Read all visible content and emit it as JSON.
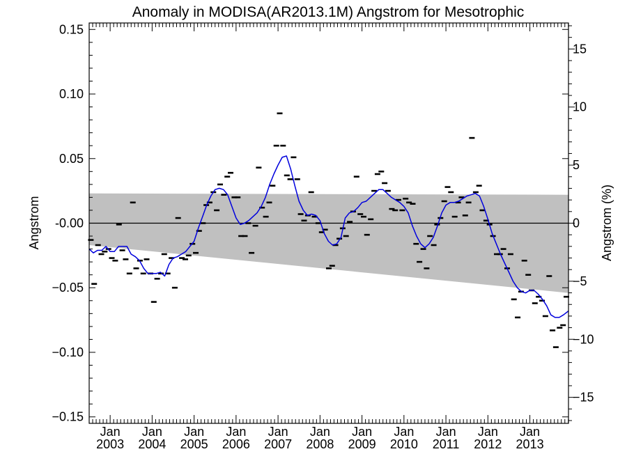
{
  "chart_data": {
    "type": "line",
    "title": "Anomaly in MODISA(AR2013.1M) Angstrom for Mesotrophic",
    "ylabel": "Angstrom",
    "ylabel_right": "Angstrom (%)",
    "xlabel": "",
    "ylim": [
      -0.155,
      0.155
    ],
    "ylim_right": [
      -17.24,
      17.24
    ],
    "x_range": [
      2002.5,
      2013.92
    ],
    "y_ticks": [
      -0.15,
      -0.1,
      -0.05,
      0.0,
      0.05,
      0.1,
      0.15
    ],
    "y_tick_labels": [
      "−0.15",
      "−0.10",
      "−0.05",
      "-0.00",
      "0.05",
      "0.10",
      "0.15"
    ],
    "y_right_ticks": [
      -15,
      -10,
      -5,
      0,
      5,
      10,
      15
    ],
    "y_right_tick_labels": [
      "−15",
      "−10",
      "−5",
      "0",
      "5",
      "10",
      "15"
    ],
    "x_ticks": [
      {
        "x": 2003.0,
        "month": "Jan",
        "year": "2003"
      },
      {
        "x": 2004.0,
        "month": "Jan",
        "year": "2004"
      },
      {
        "x": 2005.0,
        "month": "Jan",
        "year": "2005"
      },
      {
        "x": 2006.0,
        "month": "Jan",
        "year": "2006"
      },
      {
        "x": 2007.0,
        "month": "Jan",
        "year": "2007"
      },
      {
        "x": 2008.0,
        "month": "Jan",
        "year": "2008"
      },
      {
        "x": 2009.0,
        "month": "Jan",
        "year": "2009"
      },
      {
        "x": 2010.0,
        "month": "Jan",
        "year": "2010"
      },
      {
        "x": 2011.0,
        "month": "Jan",
        "year": "2011"
      },
      {
        "x": 2012.0,
        "month": "Jan",
        "year": "2012"
      },
      {
        "x": 2013.0,
        "month": "Jan",
        "year": "2013"
      }
    ],
    "zero_line": 0.0,
    "shaded_band": {
      "color": "#c0c0c0",
      "upper": [
        [
          2002.5,
          0.023
        ],
        [
          2013.92,
          0.022
        ]
      ],
      "lower": [
        [
          2002.5,
          -0.017
        ],
        [
          2013.92,
          -0.054
        ]
      ]
    },
    "series": [
      {
        "type": "markers",
        "color": "#000000",
        "points": [
          [
            2002.54,
            -0.013
          ],
          [
            2002.62,
            -0.047
          ],
          [
            2002.71,
            -0.017
          ],
          [
            2002.79,
            -0.024
          ],
          [
            2002.87,
            -0.022
          ],
          [
            2002.96,
            -0.02
          ],
          [
            2003.04,
            -0.027
          ],
          [
            2003.12,
            -0.029
          ],
          [
            2003.21,
            -0.001
          ],
          [
            2003.29,
            -0.021
          ],
          [
            2003.37,
            -0.028
          ],
          [
            2003.46,
            -0.039
          ],
          [
            2003.54,
            0.016
          ],
          [
            2003.62,
            -0.035
          ],
          [
            2003.71,
            -0.029
          ],
          [
            2003.79,
            -0.039
          ],
          [
            2003.87,
            -0.028
          ],
          [
            2003.96,
            -0.039
          ],
          [
            2004.04,
            -0.061
          ],
          [
            2004.12,
            -0.043
          ],
          [
            2004.21,
            -0.039
          ],
          [
            2004.29,
            -0.024
          ],
          [
            2004.37,
            -0.039
          ],
          [
            2004.46,
            -0.027
          ],
          [
            2004.54,
            -0.05
          ],
          [
            2004.62,
            0.004
          ],
          [
            2004.71,
            -0.027
          ],
          [
            2004.79,
            -0.028
          ],
          [
            2004.87,
            -0.025
          ],
          [
            2004.96,
            -0.016
          ],
          [
            2005.04,
            -0.023
          ],
          [
            2005.12,
            -0.006
          ],
          [
            2005.21,
            0.0
          ],
          [
            2005.29,
            0.014
          ],
          [
            2005.37,
            0.016
          ],
          [
            2005.46,
            0.024
          ],
          [
            2005.54,
            0.01
          ],
          [
            2005.62,
            0.03
          ],
          [
            2005.71,
            0.022
          ],
          [
            2005.79,
            0.036
          ],
          [
            2005.87,
            0.039
          ],
          [
            2005.96,
            0.02
          ],
          [
            2006.04,
            0.02
          ],
          [
            2006.12,
            -0.01
          ],
          [
            2006.21,
            -0.01
          ],
          [
            2006.29,
            0.0
          ],
          [
            2006.37,
            -0.023
          ],
          [
            2006.46,
            -0.002
          ],
          [
            2006.54,
            0.043
          ],
          [
            2006.62,
            0.012
          ],
          [
            2006.71,
            0.005
          ],
          [
            2006.79,
            0.016
          ],
          [
            2006.87,
            0.029
          ],
          [
            2006.96,
            0.06
          ],
          [
            2007.04,
            0.085
          ],
          [
            2007.12,
            0.06
          ],
          [
            2007.21,
            0.037
          ],
          [
            2007.29,
            0.034
          ],
          [
            2007.37,
            0.051
          ],
          [
            2007.46,
            0.034
          ],
          [
            2007.54,
            0.007
          ],
          [
            2007.62,
            0.002
          ],
          [
            2007.71,
            0.006
          ],
          [
            2007.79,
            0.024
          ],
          [
            2007.87,
            0.005
          ],
          [
            2007.96,
            0.0
          ],
          [
            2008.04,
            -0.007
          ],
          [
            2008.12,
            -0.005
          ],
          [
            2008.21,
            -0.035
          ],
          [
            2008.29,
            -0.033
          ],
          [
            2008.37,
            -0.017
          ],
          [
            2008.46,
            -0.012
          ],
          [
            2008.54,
            -0.004
          ],
          [
            2008.62,
            -0.01
          ],
          [
            2008.71,
            0.001
          ],
          [
            2008.79,
            0.009
          ],
          [
            2008.87,
            0.036
          ],
          [
            2008.96,
            0.007
          ],
          [
            2009.04,
            0.005
          ],
          [
            2009.12,
            -0.009
          ],
          [
            2009.21,
            0.003
          ],
          [
            2009.29,
            0.025
          ],
          [
            2009.37,
            0.038
          ],
          [
            2009.46,
            0.04
          ],
          [
            2009.54,
            0.031
          ],
          [
            2009.62,
            0.025
          ],
          [
            2009.71,
            0.011
          ],
          [
            2009.79,
            0.01
          ],
          [
            2009.87,
            0.018
          ],
          [
            2009.96,
            0.01
          ],
          [
            2010.04,
            0.019
          ],
          [
            2010.12,
            0.016
          ],
          [
            2010.21,
            0.015
          ],
          [
            2010.29,
            -0.016
          ],
          [
            2010.37,
            -0.03
          ],
          [
            2010.46,
            -0.02
          ],
          [
            2010.54,
            -0.035
          ],
          [
            2010.62,
            -0.01
          ],
          [
            2010.71,
            -0.017
          ],
          [
            2010.79,
            -0.001
          ],
          [
            2010.87,
            0.004
          ],
          [
            2010.96,
            0.017
          ],
          [
            2011.04,
            0.028
          ],
          [
            2011.12,
            0.024
          ],
          [
            2011.21,
            0.005
          ],
          [
            2011.29,
            0.016
          ],
          [
            2011.37,
            0.02
          ],
          [
            2011.46,
            0.006
          ],
          [
            2011.54,
            0.016
          ],
          [
            2011.62,
            0.066
          ],
          [
            2011.71,
            0.024
          ],
          [
            2011.79,
            0.029
          ],
          [
            2011.87,
            0.01
          ],
          [
            2011.96,
            0.002
          ],
          [
            2012.04,
            -0.001
          ],
          [
            2012.12,
            -0.01
          ],
          [
            2012.21,
            -0.024
          ],
          [
            2012.29,
            -0.024
          ],
          [
            2012.37,
            -0.02
          ],
          [
            2012.46,
            -0.035
          ],
          [
            2012.54,
            -0.024
          ],
          [
            2012.62,
            -0.059
          ],
          [
            2012.71,
            -0.073
          ],
          [
            2012.79,
            -0.053
          ],
          [
            2012.87,
            -0.029
          ],
          [
            2012.96,
            -0.04
          ],
          [
            2013.04,
            -0.052
          ],
          [
            2013.12,
            -0.062
          ],
          [
            2013.21,
            -0.057
          ],
          [
            2013.29,
            -0.06
          ],
          [
            2013.37,
            -0.072
          ],
          [
            2013.46,
            -0.041
          ],
          [
            2013.54,
            -0.083
          ],
          [
            2013.62,
            -0.096
          ],
          [
            2013.71,
            -0.081
          ],
          [
            2013.79,
            -0.079
          ],
          [
            2013.87,
            -0.057
          ]
        ]
      },
      {
        "type": "line",
        "color": "#0000dd",
        "points": [
          [
            2002.5,
            -0.02
          ],
          [
            2002.6,
            -0.023
          ],
          [
            2002.7,
            -0.021
          ],
          [
            2002.8,
            -0.021
          ],
          [
            2002.9,
            -0.018
          ],
          [
            2003.0,
            -0.022
          ],
          [
            2003.1,
            -0.022
          ],
          [
            2003.2,
            -0.018
          ],
          [
            2003.3,
            -0.018
          ],
          [
            2003.4,
            -0.018
          ],
          [
            2003.5,
            -0.024
          ],
          [
            2003.6,
            -0.026
          ],
          [
            2003.7,
            -0.029
          ],
          [
            2003.8,
            -0.035
          ],
          [
            2003.9,
            -0.039
          ],
          [
            2004.0,
            -0.039
          ],
          [
            2004.1,
            -0.039
          ],
          [
            2004.2,
            -0.038
          ],
          [
            2004.3,
            -0.041
          ],
          [
            2004.4,
            -0.032
          ],
          [
            2004.5,
            -0.027
          ],
          [
            2004.6,
            -0.026
          ],
          [
            2004.7,
            -0.024
          ],
          [
            2004.8,
            -0.022
          ],
          [
            2004.9,
            -0.018
          ],
          [
            2005.0,
            -0.014
          ],
          [
            2005.1,
            -0.004
          ],
          [
            2005.2,
            0.005
          ],
          [
            2005.3,
            0.014
          ],
          [
            2005.4,
            0.021
          ],
          [
            2005.5,
            0.026
          ],
          [
            2005.6,
            0.027
          ],
          [
            2005.7,
            0.026
          ],
          [
            2005.8,
            0.022
          ],
          [
            2005.9,
            0.013
          ],
          [
            2006.0,
            0.004
          ],
          [
            2006.1,
            -0.001
          ],
          [
            2006.2,
            0.0
          ],
          [
            2006.3,
            0.002
          ],
          [
            2006.4,
            0.005
          ],
          [
            2006.5,
            0.008
          ],
          [
            2006.6,
            0.013
          ],
          [
            2006.7,
            0.02
          ],
          [
            2006.8,
            0.03
          ],
          [
            2006.9,
            0.038
          ],
          [
            2007.0,
            0.045
          ],
          [
            2007.1,
            0.051
          ],
          [
            2007.2,
            0.052
          ],
          [
            2007.3,
            0.042
          ],
          [
            2007.4,
            0.029
          ],
          [
            2007.5,
            0.017
          ],
          [
            2007.6,
            0.01
          ],
          [
            2007.7,
            0.006
          ],
          [
            2007.8,
            0.007
          ],
          [
            2007.9,
            0.006
          ],
          [
            2008.0,
            0.002
          ],
          [
            2008.1,
            -0.008
          ],
          [
            2008.2,
            -0.014
          ],
          [
            2008.3,
            -0.017
          ],
          [
            2008.4,
            -0.016
          ],
          [
            2008.5,
            -0.011
          ],
          [
            2008.6,
            0.004
          ],
          [
            2008.7,
            0.008
          ],
          [
            2008.8,
            0.009
          ],
          [
            2008.9,
            0.012
          ],
          [
            2009.0,
            0.016
          ],
          [
            2009.1,
            0.017
          ],
          [
            2009.2,
            0.02
          ],
          [
            2009.3,
            0.023
          ],
          [
            2009.4,
            0.026
          ],
          [
            2009.5,
            0.026
          ],
          [
            2009.6,
            0.023
          ],
          [
            2009.7,
            0.02
          ],
          [
            2009.8,
            0.018
          ],
          [
            2009.9,
            0.016
          ],
          [
            2010.0,
            0.013
          ],
          [
            2010.1,
            0.008
          ],
          [
            2010.2,
            -0.002
          ],
          [
            2010.3,
            -0.01
          ],
          [
            2010.4,
            -0.016
          ],
          [
            2010.5,
            -0.019
          ],
          [
            2010.6,
            -0.016
          ],
          [
            2010.7,
            -0.011
          ],
          [
            2010.8,
            -0.002
          ],
          [
            2010.9,
            0.008
          ],
          [
            2011.0,
            0.014
          ],
          [
            2011.1,
            0.016
          ],
          [
            2011.2,
            0.016
          ],
          [
            2011.3,
            0.017
          ],
          [
            2011.4,
            0.019
          ],
          [
            2011.5,
            0.021
          ],
          [
            2011.6,
            0.022
          ],
          [
            2011.7,
            0.023
          ],
          [
            2011.8,
            0.021
          ],
          [
            2011.9,
            0.013
          ],
          [
            2012.0,
            0.003
          ],
          [
            2012.1,
            -0.008
          ],
          [
            2012.2,
            -0.016
          ],
          [
            2012.3,
            -0.024
          ],
          [
            2012.4,
            -0.031
          ],
          [
            2012.5,
            -0.038
          ],
          [
            2012.6,
            -0.045
          ],
          [
            2012.7,
            -0.05
          ],
          [
            2012.8,
            -0.053
          ],
          [
            2012.9,
            -0.054
          ],
          [
            2013.0,
            -0.052
          ],
          [
            2013.1,
            -0.052
          ],
          [
            2013.2,
            -0.055
          ],
          [
            2013.3,
            -0.059
          ],
          [
            2013.4,
            -0.064
          ],
          [
            2013.5,
            -0.071
          ],
          [
            2013.6,
            -0.073
          ],
          [
            2013.7,
            -0.073
          ],
          [
            2013.8,
            -0.071
          ],
          [
            2013.92,
            -0.068
          ]
        ]
      }
    ]
  }
}
